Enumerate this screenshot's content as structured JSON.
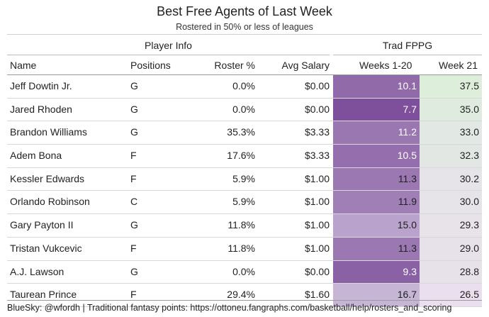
{
  "chart_data": {
    "type": "table",
    "title": "Best Free Agents of Last Week",
    "subtitle": "Rostered in 50% or less of leagues",
    "column_groups": [
      {
        "label": "Player Info",
        "columns": [
          "Name",
          "Positions",
          "Roster %",
          "Avg Salary"
        ]
      },
      {
        "label": "Trad FPPG",
        "columns": [
          "Weeks 1-20",
          "Week 21"
        ]
      }
    ],
    "headers": {
      "name": "Name",
      "positions": "Positions",
      "roster": "Roster %",
      "salary": "Avg Salary",
      "weeks": "Weeks 1-20",
      "week21": "Week 21"
    },
    "rows": [
      {
        "name": "Jeff Dowtin Jr.",
        "pos": "G",
        "roster": "0.0%",
        "salary": "$0.00",
        "weeks": "10.1",
        "week21": "37.5"
      },
      {
        "name": "Jared Rhoden",
        "pos": "G",
        "roster": "0.0%",
        "salary": "$0.00",
        "weeks": "7.7",
        "week21": "35.0"
      },
      {
        "name": "Brandon Williams",
        "pos": "G",
        "roster": "35.3%",
        "salary": "$3.33",
        "weeks": "11.2",
        "week21": "33.0"
      },
      {
        "name": "Adem Bona",
        "pos": "F",
        "roster": "17.6%",
        "salary": "$3.33",
        "weeks": "10.5",
        "week21": "32.3"
      },
      {
        "name": "Kessler Edwards",
        "pos": "F",
        "roster": "5.9%",
        "salary": "$1.00",
        "weeks": "11.3",
        "week21": "30.2"
      },
      {
        "name": "Orlando Robinson",
        "pos": "C",
        "roster": "5.9%",
        "salary": "$1.00",
        "weeks": "11.9",
        "week21": "30.0"
      },
      {
        "name": "Gary Payton II",
        "pos": "G",
        "roster": "11.8%",
        "salary": "$1.00",
        "weeks": "15.0",
        "week21": "29.3"
      },
      {
        "name": "Tristan Vukcevic",
        "pos": "F",
        "roster": "11.8%",
        "salary": "$1.00",
        "weeks": "11.3",
        "week21": "29.0"
      },
      {
        "name": "A.J. Lawson",
        "pos": "G",
        "roster": "0.0%",
        "salary": "$0.00",
        "weeks": "9.3",
        "week21": "28.8"
      },
      {
        "name": "Taurean Prince",
        "pos": "F",
        "roster": "29.4%",
        "salary": "$1.60",
        "weeks": "16.7",
        "week21": "26.5"
      }
    ],
    "colors": {
      "weeks_low": "#7e4f9a",
      "weeks_high": "#c7b5d6",
      "week21_high": "#ddeedb",
      "week21_low": "#eadfee",
      "weeks_low_text": "#ffffff",
      "weeks_high_text": "#222222"
    }
  },
  "caption": "BlueSky: @wfordh | Traditional fantasy points: https://ottoneu.fangraphs.com/basketball/help/rosters_and_scoring"
}
